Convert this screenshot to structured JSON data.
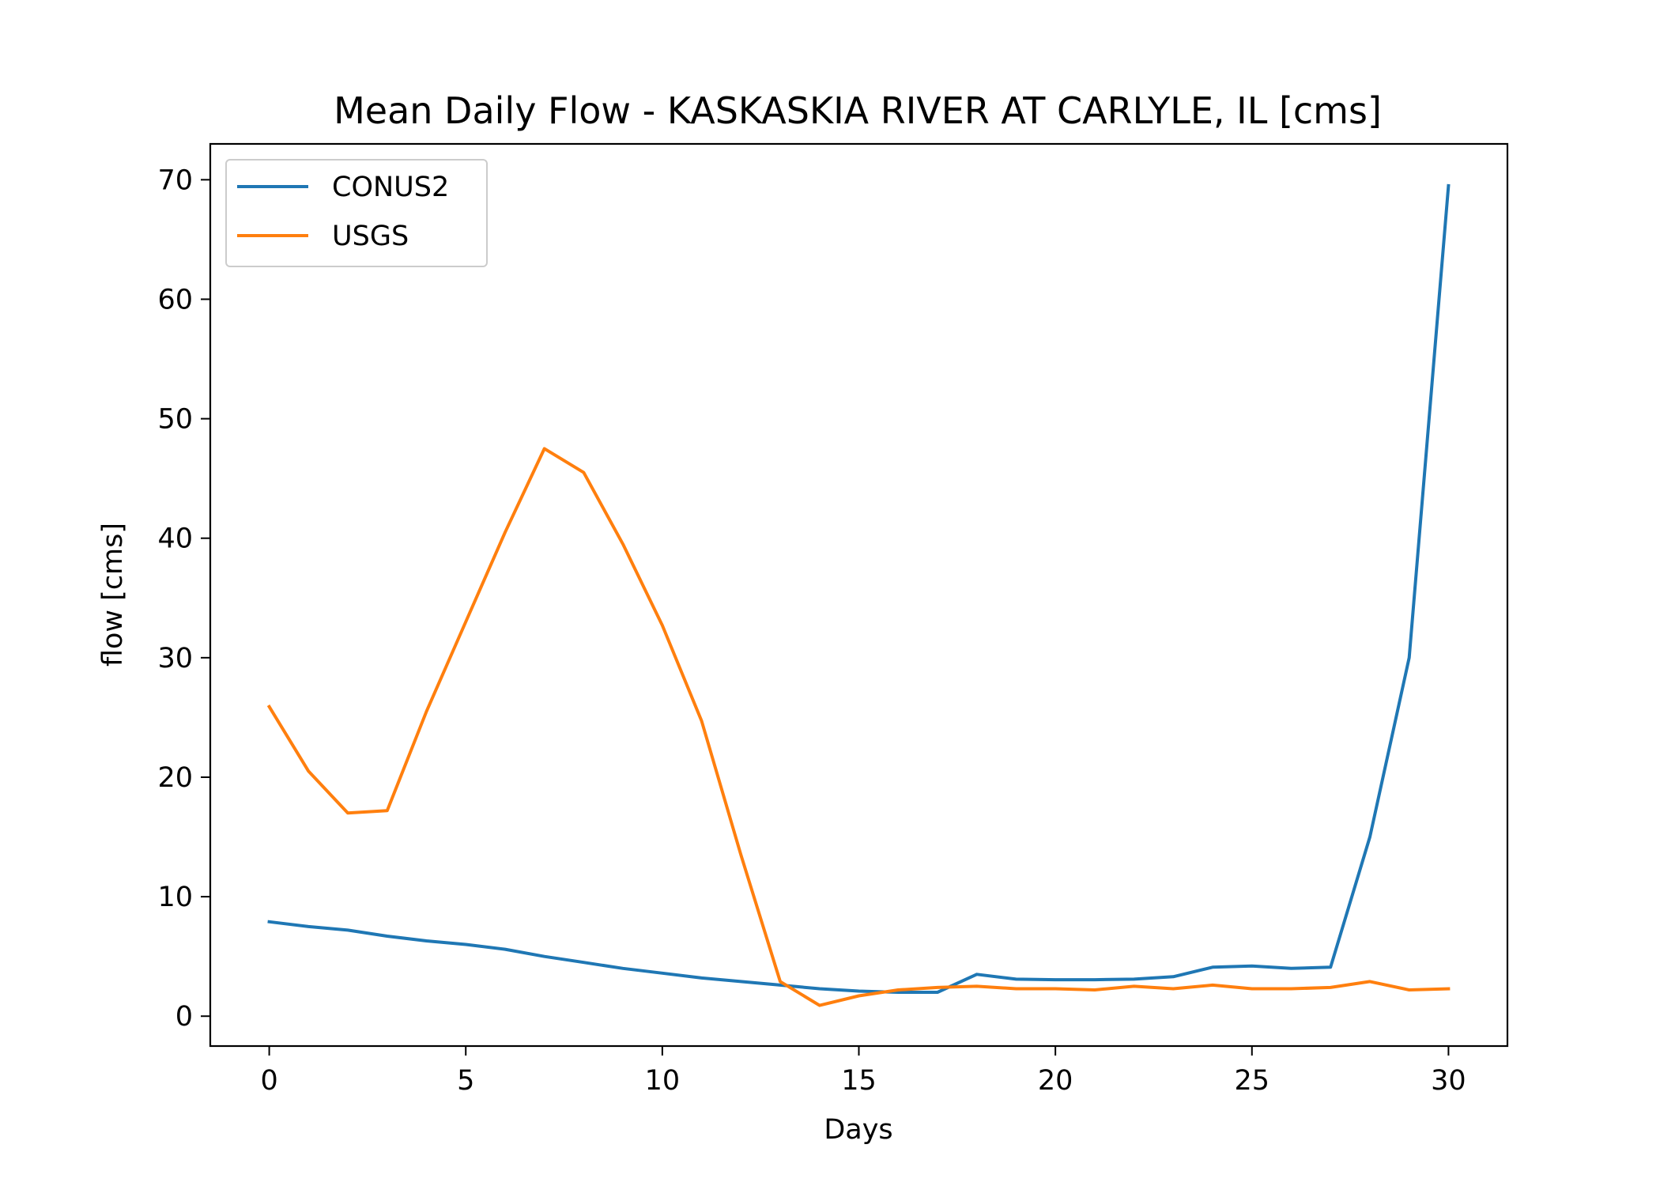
{
  "chart_data": {
    "type": "line",
    "title": "Mean Daily Flow - KASKASKIA RIVER AT CARLYLE, IL [cms]",
    "xlabel": "Days",
    "ylabel": "flow [cms]",
    "xlim": [
      -1.5,
      31.5
    ],
    "ylim": [
      -2.5,
      73
    ],
    "xticks": [
      0,
      5,
      10,
      15,
      20,
      25,
      30
    ],
    "yticks": [
      0,
      10,
      20,
      30,
      40,
      50,
      60,
      70
    ],
    "grid": false,
    "legend": "upper-left",
    "x": [
      0,
      1,
      2,
      3,
      4,
      5,
      6,
      7,
      8,
      9,
      10,
      11,
      12,
      13,
      14,
      15,
      16,
      17,
      18,
      19,
      20,
      21,
      22,
      23,
      24,
      25,
      26,
      27,
      28,
      29,
      30
    ],
    "series": [
      {
        "name": "CONUS2",
        "color": "#1f77b4",
        "values": [
          7.9,
          7.5,
          7.2,
          6.7,
          6.3,
          6.0,
          5.6,
          5.0,
          4.5,
          4.0,
          3.6,
          3.2,
          2.9,
          2.6,
          2.3,
          2.1,
          2.0,
          2.0,
          3.5,
          3.1,
          3.05,
          3.05,
          3.1,
          3.3,
          4.1,
          4.2,
          4.0,
          4.1,
          15.0,
          30.0,
          69.5
        ]
      },
      {
        "name": "USGS",
        "color": "#ff7f0e",
        "values": [
          25.9,
          20.5,
          17.0,
          17.2,
          25.5,
          33.0,
          40.5,
          47.5,
          45.5,
          39.5,
          32.7,
          24.7,
          13.5,
          2.9,
          0.9,
          1.7,
          2.2,
          2.4,
          2.5,
          2.3,
          2.3,
          2.2,
          2.5,
          2.3,
          2.6,
          2.3,
          2.3,
          2.4,
          2.9,
          2.2,
          2.3
        ]
      }
    ]
  }
}
